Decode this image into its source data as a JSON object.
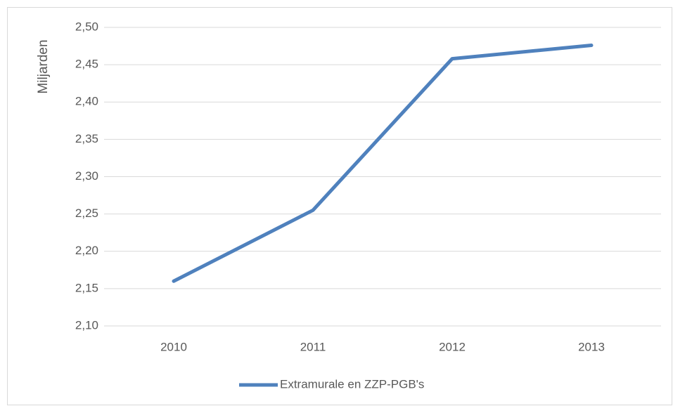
{
  "chart_data": {
    "type": "line",
    "y_label": "Miljarden",
    "categories": [
      "2010",
      "2011",
      "2012",
      "2013"
    ],
    "series": [
      {
        "name": "Extramurale en ZZP-PGB's",
        "color": "#4f81bd",
        "values": [
          2.16,
          2.255,
          2.458,
          2.476
        ]
      }
    ],
    "ylim": [
      2.1,
      2.5
    ],
    "yticks": [
      {
        "value": 2.1,
        "label": "2,10"
      },
      {
        "value": 2.15,
        "label": "2,15"
      },
      {
        "value": 2.2,
        "label": "2,20"
      },
      {
        "value": 2.25,
        "label": "2,25"
      },
      {
        "value": 2.3,
        "label": "2,30"
      },
      {
        "value": 2.35,
        "label": "2,35"
      },
      {
        "value": 2.4,
        "label": "2,40"
      },
      {
        "value": 2.45,
        "label": "2,45"
      },
      {
        "value": 2.5,
        "label": "2,50"
      }
    ],
    "grid": true,
    "legend": "bottom"
  }
}
